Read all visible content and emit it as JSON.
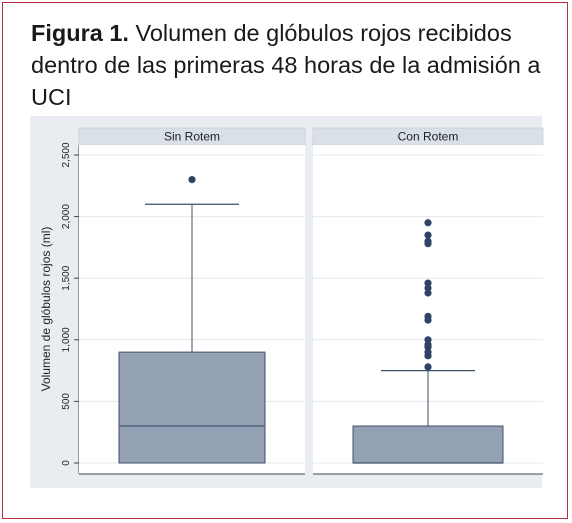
{
  "figure": {
    "label": "Figura 1.",
    "caption": "Volumen de glóbulos rojos recibidos dentro de las primeras 48 horas de la admisión a UCI"
  },
  "colors": {
    "frame_border": "#b5303a",
    "plot_background": "#e9edf2",
    "panel_background": "#ffffff",
    "strip_background": "#d9e0e8",
    "box_fill": "#94a0b3",
    "box_stroke": "#3d4f68",
    "outlier": "#2e4366",
    "grid": "#e4e8ee"
  },
  "chart_data": {
    "type": "box",
    "title": "",
    "ylabel": "Volumen de glóbulos rojos (ml)",
    "xlabel": "",
    "ylim": [
      0,
      2500
    ],
    "yticks": [
      0,
      500,
      1000,
      1500,
      2000,
      2500
    ],
    "ytick_labels": [
      "0",
      "500",
      "1,000",
      "1,500",
      "2,000",
      "2,500"
    ],
    "grid": true,
    "panels": [
      {
        "name": "Sin Rotem",
        "min": 0,
        "q1": 0,
        "median": 300,
        "q3": 900,
        "whisker_high": 2100,
        "outliers": [
          2300
        ]
      },
      {
        "name": "Con Rotem",
        "min": 0,
        "q1": 0,
        "median": 0,
        "q3": 300,
        "whisker_high": 750,
        "outliers": [
          780,
          870,
          900,
          940,
          960,
          1000,
          1160,
          1190,
          1380,
          1420,
          1460,
          1780,
          1800,
          1850,
          1950
        ]
      }
    ]
  }
}
